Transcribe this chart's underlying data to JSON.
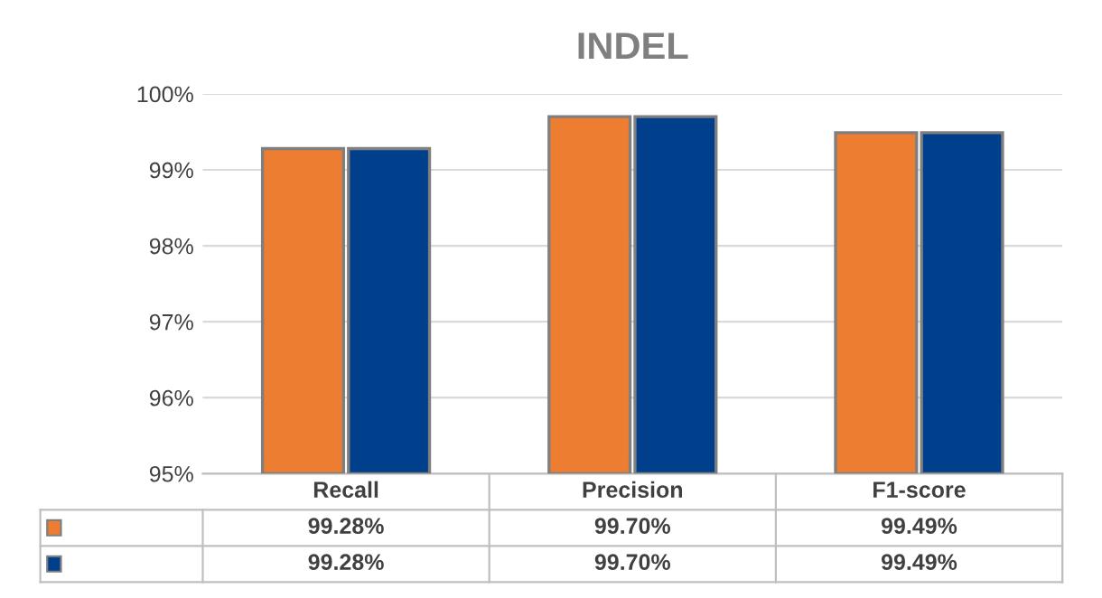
{
  "chart_data": {
    "type": "bar",
    "title": "INDEL",
    "categories": [
      "Recall",
      "Precision",
      "F1-score"
    ],
    "series": [
      {
        "color": "#ed7d31",
        "values": [
          99.28,
          99.7,
          99.49
        ],
        "value_labels": [
          "99.28%",
          "99.70%",
          "99.49%"
        ]
      },
      {
        "color": "#003f8c",
        "values": [
          99.28,
          99.7,
          99.49
        ],
        "value_labels": [
          "99.28%",
          "99.70%",
          "99.49%"
        ]
      }
    ],
    "ylim": [
      95,
      100
    ],
    "yticks": [
      {
        "value": 95,
        "label": "95%"
      },
      {
        "value": 96,
        "label": "96%"
      },
      {
        "value": 97,
        "label": "97%"
      },
      {
        "value": 98,
        "label": "98%"
      },
      {
        "value": 99,
        "label": "99%"
      },
      {
        "value": 100,
        "label": "100%"
      }
    ],
    "grid": "y",
    "legend": false
  }
}
